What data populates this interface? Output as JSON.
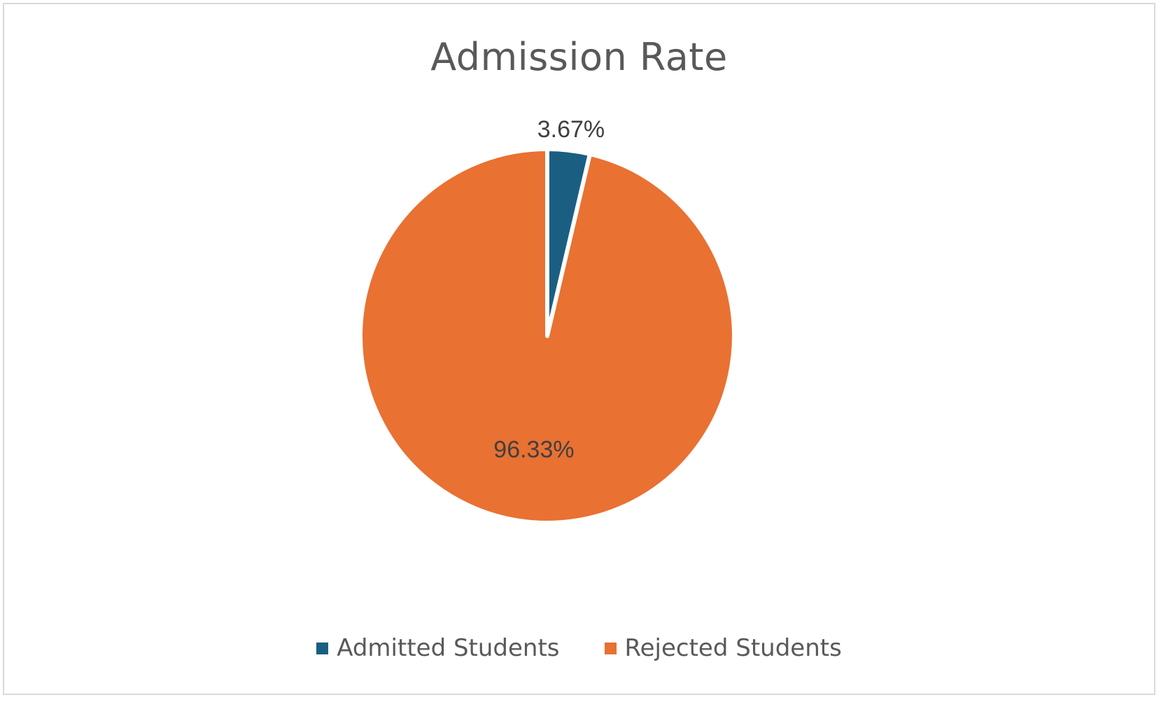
{
  "chart_data": {
    "type": "pie",
    "title": "Admission Rate",
    "categories": [
      "Admitted Students",
      "Rejected Students"
    ],
    "values": [
      3.67,
      96.33
    ],
    "data_labels": [
      "3.67%",
      "96.33%"
    ],
    "colors": [
      "#1a5f82",
      "#e97132"
    ],
    "legend_position": "bottom"
  }
}
